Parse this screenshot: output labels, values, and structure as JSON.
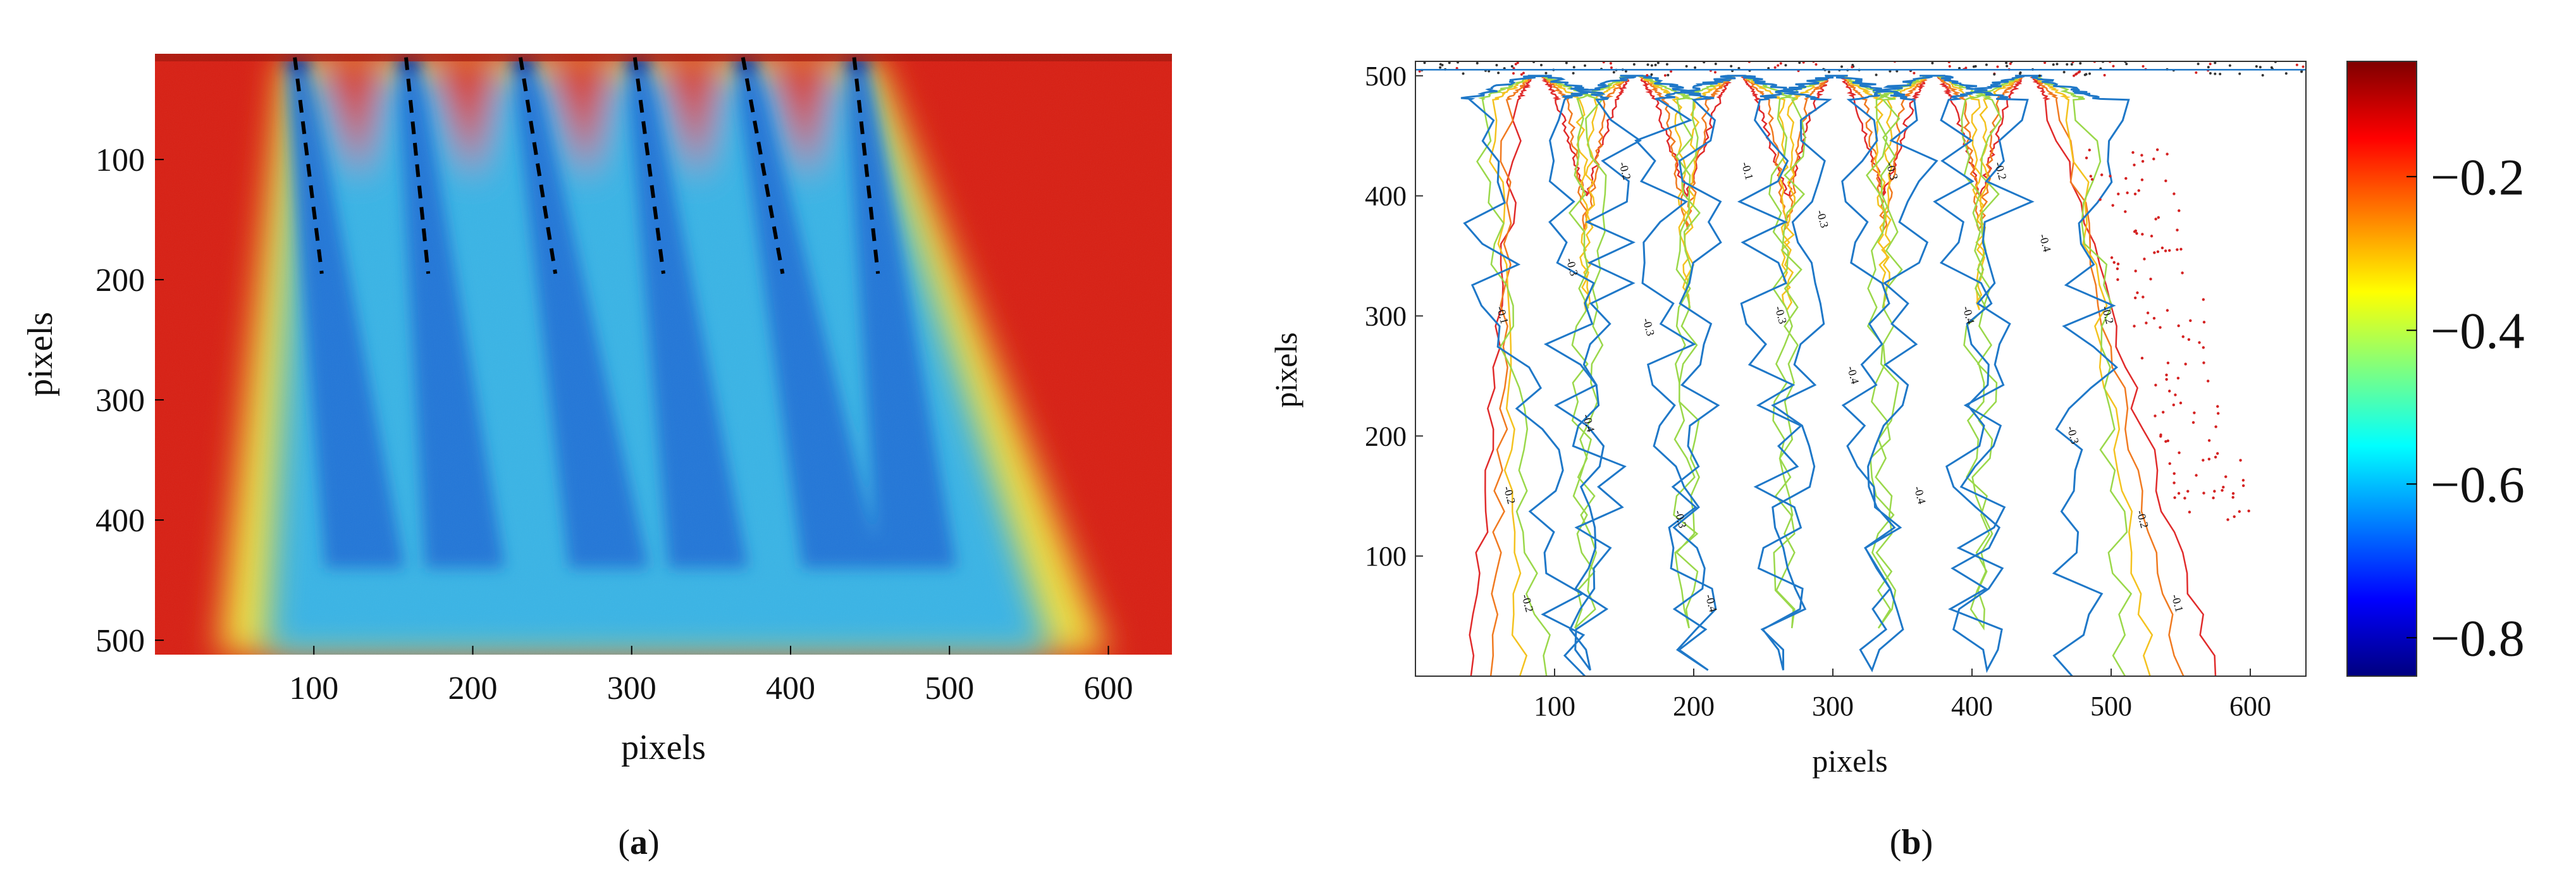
{
  "panel_a": {
    "label_open": "(",
    "label_letter": "a",
    "label_close": ")",
    "xlabel": "pixels",
    "ylabel": "pixels",
    "xticks": [
      100,
      200,
      300,
      400,
      500,
      600
    ],
    "yticks": [
      100,
      200,
      300,
      400,
      500
    ],
    "xlim": [
      0,
      640
    ],
    "ylim_top_to_bottom": [
      12,
      512
    ],
    "jets": [
      {
        "tip": [
          88,
          15
        ],
        "end": [
          105,
          195
        ]
      },
      {
        "tip": [
          158,
          15
        ],
        "end": [
          172,
          195
        ]
      },
      {
        "tip": [
          230,
          15
        ],
        "end": [
          252,
          195
        ]
      },
      {
        "tip": [
          302,
          15
        ],
        "end": [
          320,
          195
        ]
      },
      {
        "tip": [
          370,
          15
        ],
        "end": [
          395,
          195
        ]
      },
      {
        "tip": [
          440,
          15
        ],
        "end": [
          455,
          195
        ]
      }
    ],
    "colors": {
      "background": "#d81e12",
      "jet_core": "#1f70d6",
      "plume": "#39b4e6",
      "edge": "#f1df3d"
    }
  },
  "panel_b": {
    "label_open": "(",
    "label_letter": "b",
    "label_close": ")",
    "xlabel": "pixels",
    "ylabel": "pixels",
    "xticks": [
      100,
      200,
      300,
      400,
      500,
      600
    ],
    "yticks": [
      100,
      200,
      300,
      400,
      500
    ],
    "xlim": [
      0,
      640
    ],
    "ylim": [
      0,
      512
    ],
    "contour_labels": [
      "-0.1",
      "-0.2",
      "-0.3",
      "-0.4"
    ]
  },
  "colorbar": {
    "ticks": [
      {
        "label": "−0.2",
        "value": -0.2
      },
      {
        "label": "−0.4",
        "value": -0.4
      },
      {
        "label": "−0.6",
        "value": -0.6
      },
      {
        "label": "−0.8",
        "value": -0.8
      }
    ],
    "range": [
      -0.85,
      -0.05
    ],
    "colormap": [
      "#00007f",
      "#0000ff",
      "#007fff",
      "#00ffff",
      "#7fff7f",
      "#ffff00",
      "#ff7f00",
      "#ff0000",
      "#7f0000"
    ]
  },
  "chart_data": [
    {
      "type": "heatmap",
      "xlabel": "pixels",
      "ylabel": "pixels",
      "xlim": [
        0,
        640
      ],
      "ylim": [
        512,
        12
      ],
      "xticks": [
        100,
        200,
        300,
        400,
        500,
        600
      ],
      "yticks": [
        100,
        200,
        300,
        400,
        500
      ],
      "jet_axes": [
        {
          "x_top": 88,
          "x_bottom": 105
        },
        {
          "x_top": 158,
          "x_bottom": 172
        },
        {
          "x_top": 230,
          "x_bottom": 252
        },
        {
          "x_top": 302,
          "x_bottom": 320
        },
        {
          "x_top": 370,
          "x_bottom": 395
        },
        {
          "x_top": 440,
          "x_bottom": 455
        }
      ]
    },
    {
      "type": "line",
      "xlabel": "pixels",
      "ylabel": "pixels",
      "xlim": [
        0,
        640
      ],
      "ylim": [
        0,
        512
      ],
      "xticks": [
        100,
        200,
        300,
        400,
        500,
        600
      ],
      "yticks": [
        100,
        200,
        300,
        400,
        500
      ],
      "contour_levels": [
        -0.1,
        -0.2,
        -0.3,
        -0.4,
        -0.5
      ],
      "jet_centers_x": [
        88,
        158,
        232,
        302,
        372,
        440
      ],
      "colorbar_ticks": [
        -0.2,
        -0.4,
        -0.6,
        -0.8
      ]
    }
  ]
}
